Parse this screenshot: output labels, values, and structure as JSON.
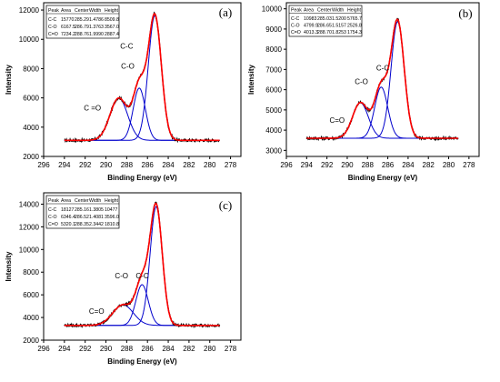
{
  "chart_data": [
    {
      "panel": "(a)",
      "type": "line",
      "xlabel": "Binding Energy (eV)",
      "ylabel": "Intensity",
      "xlim": [
        296,
        277
      ],
      "ylim": [
        2000,
        12500
      ],
      "xticks": [
        296,
        294,
        292,
        290,
        288,
        286,
        284,
        282,
        280,
        278
      ],
      "yticks": [
        2000,
        4000,
        6000,
        8000,
        10000,
        12000
      ],
      "baseline": 3100,
      "table": {
        "headers": [
          "Peak",
          "Area",
          "Center",
          "Width",
          "Height"
        ],
        "rows": [
          [
            "C-C",
            "15770",
            "285.29",
            "1.4786",
            "8509.8"
          ],
          [
            "C-O",
            "6167.5",
            "286.79",
            "1.3763",
            "3567.0"
          ],
          [
            "C=O",
            "7234.2",
            "288.76",
            "1.9990",
            "2887.4"
          ]
        ]
      },
      "series": [
        {
          "name": "C-C",
          "center": 285.29,
          "fwhm": 1.4786,
          "height": 8509.8
        },
        {
          "name": "C-O",
          "center": 286.79,
          "fwhm": 1.3763,
          "height": 3567.0
        },
        {
          "name": "C=O",
          "center": 288.76,
          "fwhm": 1.999,
          "height": 2887.4
        }
      ],
      "labels": {
        "cc": "C-C",
        "co": "C-O",
        "c2o": "C =O"
      }
    },
    {
      "panel": "(b)",
      "type": "line",
      "xlabel": "Binding Energy (eV)",
      "ylabel": "Intensity",
      "xlim": [
        296,
        277
      ],
      "ylim": [
        2700,
        10300
      ],
      "xticks": [
        296,
        294,
        292,
        290,
        288,
        286,
        284,
        282,
        280,
        278
      ],
      "yticks": [
        3000,
        4000,
        5000,
        6000,
        7000,
        8000,
        9000,
        10000
      ],
      "baseline": 3600,
      "table": {
        "headers": [
          "Peak",
          "Area",
          "Center",
          "Width",
          "Height"
        ],
        "rows": [
          [
            "C-C",
            "10983",
            "285.03",
            "1.5200",
            "5765.7"
          ],
          [
            "C-O",
            "4799.9",
            "286.65",
            "1.5157",
            "2526.8"
          ],
          [
            "C=O",
            "4013.3",
            "288.70",
            "1.8253",
            "1754.3"
          ]
        ]
      },
      "series": [
        {
          "name": "C-C",
          "center": 285.03,
          "fwhm": 1.52,
          "height": 5765.7
        },
        {
          "name": "C-O",
          "center": 286.65,
          "fwhm": 1.5157,
          "height": 2526.8
        },
        {
          "name": "C=O",
          "center": 288.7,
          "fwhm": 1.8253,
          "height": 1754.3
        }
      ],
      "labels": {
        "cc": "C-C",
        "co": "C-O",
        "c2o": "C=O"
      }
    },
    {
      "panel": "(c)",
      "type": "line",
      "xlabel": "Binding Energy (eV)",
      "ylabel": "Intensity",
      "xlim": [
        296,
        277
      ],
      "ylim": [
        2000,
        15000
      ],
      "xticks": [
        296,
        294,
        292,
        290,
        288,
        286,
        284,
        282,
        280,
        278
      ],
      "yticks": [
        2000,
        4000,
        6000,
        8000,
        10000,
        12000,
        14000
      ],
      "baseline": 3300,
      "table": {
        "headers": [
          "Peak",
          "Area",
          "Center",
          "Width",
          "Height"
        ],
        "rows": [
          [
            "C-C",
            "18127",
            "285.16",
            "1.3805",
            "10477"
          ],
          [
            "C-O",
            "6346.4",
            "286.52",
            "1.4081",
            "3596.0"
          ],
          [
            "C=O",
            "5320.1",
            "288.35",
            "2.3442",
            "1810.8"
          ]
        ]
      },
      "series": [
        {
          "name": "C-C",
          "center": 285.16,
          "fwhm": 1.3805,
          "height": 10477
        },
        {
          "name": "C-O",
          "center": 286.52,
          "fwhm": 1.4081,
          "height": 3596.0
        },
        {
          "name": "C=O",
          "center": 288.35,
          "fwhm": 2.3442,
          "height": 1810.8
        }
      ],
      "labels": {
        "cc": "C-C",
        "co": "C-O",
        "c2o": "C=O"
      }
    }
  ],
  "colors": {
    "envelope": "#ff0000",
    "raw": "#000000",
    "components": "#0000cc",
    "axis": "#000000"
  }
}
